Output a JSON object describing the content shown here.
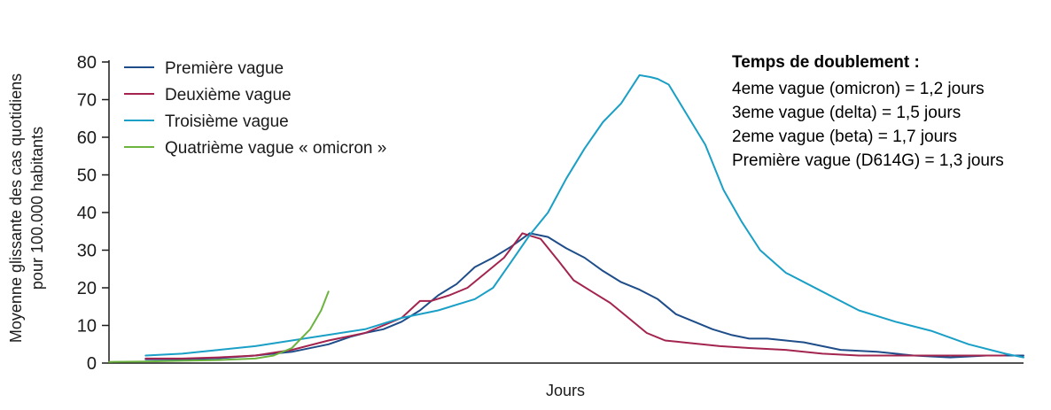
{
  "chart_data": {
    "type": "line",
    "title": "",
    "xlabel": "Jours",
    "ylabel_lines": [
      "Moyenne glissante des cas quotidiens",
      "pour 100.000 habitants"
    ],
    "ylim": [
      0,
      80
    ],
    "xlim": [
      0,
      250
    ],
    "y_ticks": [
      "0",
      "10",
      "20",
      "30",
      "40",
      "50",
      "60",
      "70",
      "80"
    ],
    "grid": false,
    "legend_position": "top-left",
    "series": [
      {
        "name": "Première vague",
        "color": "#1e4d8a",
        "x": [
          10,
          20,
          30,
          40,
          50,
          60,
          66,
          70,
          75,
          80,
          85,
          90,
          95,
          100,
          105,
          110,
          115,
          120,
          125,
          130,
          135,
          140,
          145,
          150,
          155,
          160,
          165,
          170,
          175,
          180,
          185,
          190,
          195,
          200,
          210,
          220,
          230,
          240,
          250
        ],
        "y": [
          1.0,
          1.0,
          1.3,
          2.0,
          3.0,
          5.0,
          7.0,
          8.0,
          9.0,
          11.0,
          14.0,
          18.0,
          21.0,
          25.5,
          28.0,
          31.0,
          34.5,
          33.5,
          30.5,
          28.0,
          24.5,
          21.5,
          19.5,
          17.0,
          13.0,
          11.0,
          9.0,
          7.5,
          6.5,
          6.5,
          6.0,
          5.5,
          4.5,
          3.5,
          3.0,
          2.0,
          1.5,
          2.0,
          2.0
        ]
      },
      {
        "name": "Deuxième vague",
        "color": "#a3244e",
        "x": [
          10,
          20,
          30,
          40,
          50,
          60,
          70,
          80,
          85,
          88,
          93,
          98,
          103,
          108,
          113,
          118,
          123,
          127,
          132,
          137,
          142,
          147,
          152,
          157,
          162,
          167,
          175,
          185,
          195,
          205,
          215,
          225,
          235,
          245
        ],
        "y": [
          1.2,
          1.2,
          1.5,
          2.0,
          3.5,
          6.0,
          8.0,
          12.0,
          16.5,
          16.5,
          18.0,
          20.0,
          24.0,
          28.0,
          34.5,
          33.0,
          27.0,
          22.0,
          19.0,
          16.0,
          12.0,
          8.0,
          6.0,
          5.5,
          5.0,
          4.5,
          4.0,
          3.5,
          2.5,
          2.0,
          2.0,
          2.0,
          2.0,
          2.0
        ]
      },
      {
        "name": "Troisième vague",
        "color": "#1a9fc6",
        "x": [
          10,
          20,
          30,
          40,
          50,
          60,
          70,
          80,
          90,
          100,
          105,
          110,
          115,
          120,
          125,
          130,
          135,
          140,
          145,
          148,
          150,
          153,
          158,
          163,
          168,
          173,
          178,
          185,
          195,
          205,
          215,
          225,
          235,
          245,
          250
        ],
        "y": [
          2.0,
          2.5,
          3.5,
          4.5,
          6.0,
          7.5,
          9.0,
          12.0,
          14.0,
          17.0,
          20.0,
          27.0,
          34.0,
          40.0,
          49.0,
          57.0,
          64.0,
          69.0,
          76.5,
          76.0,
          75.5,
          74.0,
          66.0,
          58.0,
          46.0,
          37.5,
          30.0,
          24.0,
          19.0,
          14.0,
          11.0,
          8.5,
          5.0,
          2.5,
          1.5
        ]
      },
      {
        "name": "Quatrième vague « omicron »",
        "color": "#6cb43f",
        "x": [
          0,
          10,
          20,
          30,
          40,
          45,
          50,
          55,
          58,
          60
        ],
        "y": [
          0.3,
          0.4,
          0.6,
          0.8,
          1.2,
          2.0,
          4.0,
          9.0,
          14.0,
          19.0
        ]
      }
    ]
  },
  "annotation": {
    "title": "Temps de doublement :",
    "lines": [
      "4eme vague (omicron) = 1,2 jours",
      "3eme vague (delta) = 1,5 jours",
      "2eme vague (beta) = 1,7 jours",
      "Première vague (D614G) = 1,3 jours"
    ]
  }
}
